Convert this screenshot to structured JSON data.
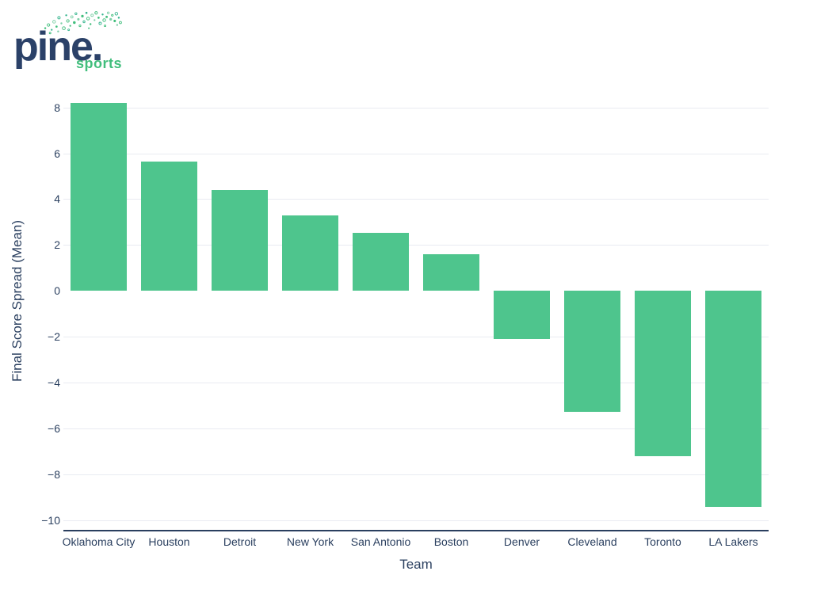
{
  "logo": {
    "brand": "pine.",
    "sub": "sports"
  },
  "chart_data": {
    "type": "bar",
    "title": "",
    "xlabel": "Team",
    "ylabel": "Final Score Spread (Mean)",
    "categories": [
      "Oklahoma City",
      "Houston",
      "Detroit",
      "New York",
      "San Antonio",
      "Boston",
      "Denver",
      "Cleveland",
      "Toronto",
      "LA Lakers"
    ],
    "values": [
      8.2,
      5.65,
      4.4,
      3.3,
      2.55,
      1.6,
      -2.1,
      -5.25,
      -7.2,
      -9.4
    ],
    "yticks": [
      8,
      6,
      4,
      2,
      0,
      -2,
      -4,
      -6,
      -8,
      -10
    ],
    "ylim": [
      -10.4,
      8.88
    ],
    "bar_color": "#4EC58D",
    "grid": true,
    "zeroline": false,
    "legend": false
  },
  "colors": {
    "text": "#2A3F5F",
    "grid": "#E9EBF2",
    "axis": "#2A3F5F",
    "bar": "#4EC58D",
    "logo_navy": "#2B4168",
    "logo_green": "#41BE7C",
    "background": "#FFFFFF"
  }
}
